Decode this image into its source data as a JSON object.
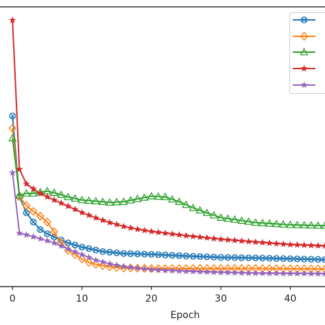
{
  "chart_data": {
    "type": "line",
    "title": "",
    "xlabel": "Epoch",
    "ylabel": "",
    "xlim": [
      -1.8,
      45
    ],
    "ylim": [
      0,
      1
    ],
    "x_ticks": [
      0,
      10,
      20,
      30,
      40
    ],
    "x_tick_labels": [
      "0",
      "10",
      "20",
      "30",
      "40"
    ],
    "grid": false,
    "legend_position": "top-right",
    "series": [
      {
        "color": "#1f77b4",
        "marker": "circle-x",
        "x_points": [
          0,
          1,
          2,
          3,
          4,
          5,
          6,
          8,
          10,
          13,
          16,
          20,
          25,
          30,
          35,
          40,
          45
        ],
        "y_points": [
          0.613,
          0.323,
          0.265,
          0.232,
          0.205,
          0.19,
          0.178,
          0.157,
          0.142,
          0.126,
          0.119,
          0.116,
          0.11,
          0.105,
          0.103,
          0.1,
          0.097
        ]
      },
      {
        "color": "#ff7f0e",
        "marker": "diamond",
        "x_points": [
          0,
          1,
          2,
          3,
          4,
          5,
          6,
          7,
          8,
          9,
          10,
          11,
          12,
          14,
          16,
          20,
          25,
          30,
          35,
          40,
          45
        ],
        "y_points": [
          0.569,
          0.323,
          0.291,
          0.27,
          0.253,
          0.232,
          0.197,
          0.157,
          0.13,
          0.115,
          0.1,
          0.087,
          0.08,
          0.071,
          0.067,
          0.065,
          0.065,
          0.065,
          0.065,
          0.064,
          0.063
        ]
      },
      {
        "color": "#2ca02c",
        "marker": "triangle",
        "x_points": [
          0,
          1,
          2,
          3,
          4,
          5,
          6,
          7,
          8,
          10,
          12,
          14,
          16,
          18,
          20,
          22,
          24,
          26,
          28,
          30,
          35,
          40,
          45
        ],
        "y_points": [
          0.533,
          0.328,
          0.335,
          0.335,
          0.339,
          0.343,
          0.337,
          0.33,
          0.322,
          0.311,
          0.307,
          0.302,
          0.305,
          0.315,
          0.325,
          0.322,
          0.305,
          0.283,
          0.265,
          0.248,
          0.23,
          0.222,
          0.219
        ]
      },
      {
        "color": "#d62728",
        "marker": "star",
        "x_points": [
          0,
          1,
          2,
          4,
          6,
          8,
          10,
          12,
          14,
          16,
          18,
          20,
          25,
          30,
          35,
          40,
          45
        ],
        "y_points": [
          0.957,
          0.422,
          0.369,
          0.334,
          0.311,
          0.289,
          0.266,
          0.247,
          0.23,
          0.216,
          0.206,
          0.198,
          0.183,
          0.17,
          0.16,
          0.151,
          0.146
        ]
      },
      {
        "color": "#9467bd",
        "marker": "star",
        "x_points": [
          0,
          1,
          2,
          4,
          6,
          8,
          10,
          12,
          14,
          16,
          20,
          25,
          30,
          35,
          40,
          45
        ],
        "y_points": [
          0.409,
          0.192,
          0.186,
          0.172,
          0.157,
          0.135,
          0.115,
          0.095,
          0.082,
          0.072,
          0.061,
          0.055,
          0.051,
          0.048,
          0.047,
          0.046
        ]
      }
    ]
  }
}
